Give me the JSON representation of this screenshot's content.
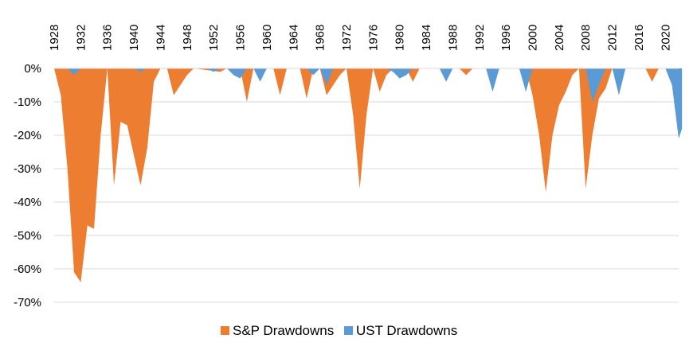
{
  "chart_data": {
    "type": "area",
    "title": "",
    "xlabel": "",
    "ylabel": "",
    "x_range": [
      1928,
      2022
    ],
    "ylim": [
      -70,
      0
    ],
    "y_ticks": [
      0,
      -10,
      -20,
      -30,
      -40,
      -50,
      -60,
      -70
    ],
    "y_tick_labels": [
      "0%",
      "-10%",
      "-20%",
      "-30%",
      "-40%",
      "-50%",
      "-60%",
      "-70%"
    ],
    "x_ticks": [
      1928,
      1932,
      1936,
      1940,
      1944,
      1948,
      1952,
      1956,
      1960,
      1964,
      1968,
      1972,
      1976,
      1980,
      1984,
      1988,
      1992,
      1996,
      2000,
      2004,
      2008,
      2012,
      2016,
      2020
    ],
    "x_tick_labels": [
      "1928",
      "1932",
      "1936",
      "1940",
      "1944",
      "1948",
      "1952",
      "1956",
      "1960",
      "1964",
      "1968",
      "1972",
      "1976",
      "1980",
      "1984",
      "1988",
      "1992",
      "1996",
      "2000",
      "2004",
      "2008",
      "2012",
      "2016",
      "2020"
    ],
    "grid": "horizontal",
    "legend_position": "bottom",
    "series": [
      {
        "name": "S&P Drawdowns",
        "color": "#ed7d31",
        "points": [
          [
            1928,
            0
          ],
          [
            1929,
            -8
          ],
          [
            1930,
            -30
          ],
          [
            1931,
            -61
          ],
          [
            1932,
            -64
          ],
          [
            1933,
            -47
          ],
          [
            1934,
            -48
          ],
          [
            1935,
            -20
          ],
          [
            1936,
            0
          ],
          [
            1937,
            -35
          ],
          [
            1938,
            -16
          ],
          [
            1939,
            -17
          ],
          [
            1940,
            -26
          ],
          [
            1941,
            -35
          ],
          [
            1942,
            -24
          ],
          [
            1943,
            -4
          ],
          [
            1944,
            0
          ],
          [
            1945,
            0
          ],
          [
            1946,
            -8
          ],
          [
            1947,
            -5
          ],
          [
            1948,
            -2
          ],
          [
            1949,
            0
          ],
          [
            1953,
            -1
          ],
          [
            1954,
            0
          ],
          [
            1956,
            0
          ],
          [
            1957,
            -10
          ],
          [
            1958,
            0
          ],
          [
            1961,
            0
          ],
          [
            1962,
            -8
          ],
          [
            1963,
            0
          ],
          [
            1965,
            0
          ],
          [
            1966,
            -9
          ],
          [
            1967,
            0
          ],
          [
            1968,
            0
          ],
          [
            1969,
            -8
          ],
          [
            1970,
            -5
          ],
          [
            1971,
            -2
          ],
          [
            1972,
            0
          ],
          [
            1973,
            -14
          ],
          [
            1974,
            -36
          ],
          [
            1975,
            -14
          ],
          [
            1976,
            0
          ],
          [
            1977,
            -7
          ],
          [
            1978,
            -2
          ],
          [
            1979,
            0
          ],
          [
            1981,
            0
          ],
          [
            1982,
            -4
          ],
          [
            1983,
            0
          ],
          [
            1989,
            0
          ],
          [
            1990,
            -2
          ],
          [
            1991,
            0
          ],
          [
            1999,
            0
          ],
          [
            2000,
            -8
          ],
          [
            2001,
            -20
          ],
          [
            2002,
            -37
          ],
          [
            2003,
            -20
          ],
          [
            2004,
            -11
          ],
          [
            2005,
            -7
          ],
          [
            2006,
            -2
          ],
          [
            2007,
            0
          ],
          [
            2008,
            -36
          ],
          [
            2009,
            -20
          ],
          [
            2010,
            -9
          ],
          [
            2011,
            -6
          ],
          [
            2012,
            0
          ],
          [
            2017,
            0
          ],
          [
            2018,
            -4
          ],
          [
            2019,
            0
          ],
          [
            2021,
            0
          ],
          [
            2022,
            -18
          ]
        ]
      },
      {
        "name": "UST Drawdowns",
        "color": "#5b9bd5",
        "points": [
          [
            1928,
            0
          ],
          [
            1930,
            0
          ],
          [
            1931,
            -2
          ],
          [
            1932,
            0
          ],
          [
            1940,
            0
          ],
          [
            1941,
            -1
          ],
          [
            1942,
            0
          ],
          [
            1951,
            0
          ],
          [
            1952,
            -1
          ],
          [
            1953,
            0
          ],
          [
            1954,
            0
          ],
          [
            1955,
            -2
          ],
          [
            1956,
            -3
          ],
          [
            1957,
            0
          ],
          [
            1958,
            0
          ],
          [
            1959,
            -4
          ],
          [
            1960,
            0
          ],
          [
            1966,
            0
          ],
          [
            1967,
            -2
          ],
          [
            1968,
            0
          ],
          [
            1969,
            -5
          ],
          [
            1970,
            0
          ],
          [
            1978,
            0
          ],
          [
            1979,
            -1
          ],
          [
            1980,
            -3
          ],
          [
            1981,
            -2
          ],
          [
            1982,
            0
          ],
          [
            1986,
            0
          ],
          [
            1987,
            -4
          ],
          [
            1988,
            0
          ],
          [
            1993,
            0
          ],
          [
            1994,
            -7
          ],
          [
            1995,
            0
          ],
          [
            1998,
            0
          ],
          [
            1999,
            -7
          ],
          [
            2000,
            0
          ],
          [
            2008,
            0
          ],
          [
            2009,
            -10
          ],
          [
            2010,
            -5
          ],
          [
            2011,
            0
          ],
          [
            2012,
            0
          ],
          [
            2013,
            -8
          ],
          [
            2014,
            0
          ],
          [
            2020,
            0
          ],
          [
            2021,
            -5
          ],
          [
            2022,
            -21
          ],
          [
            2022.5,
            -18
          ]
        ]
      }
    ]
  }
}
